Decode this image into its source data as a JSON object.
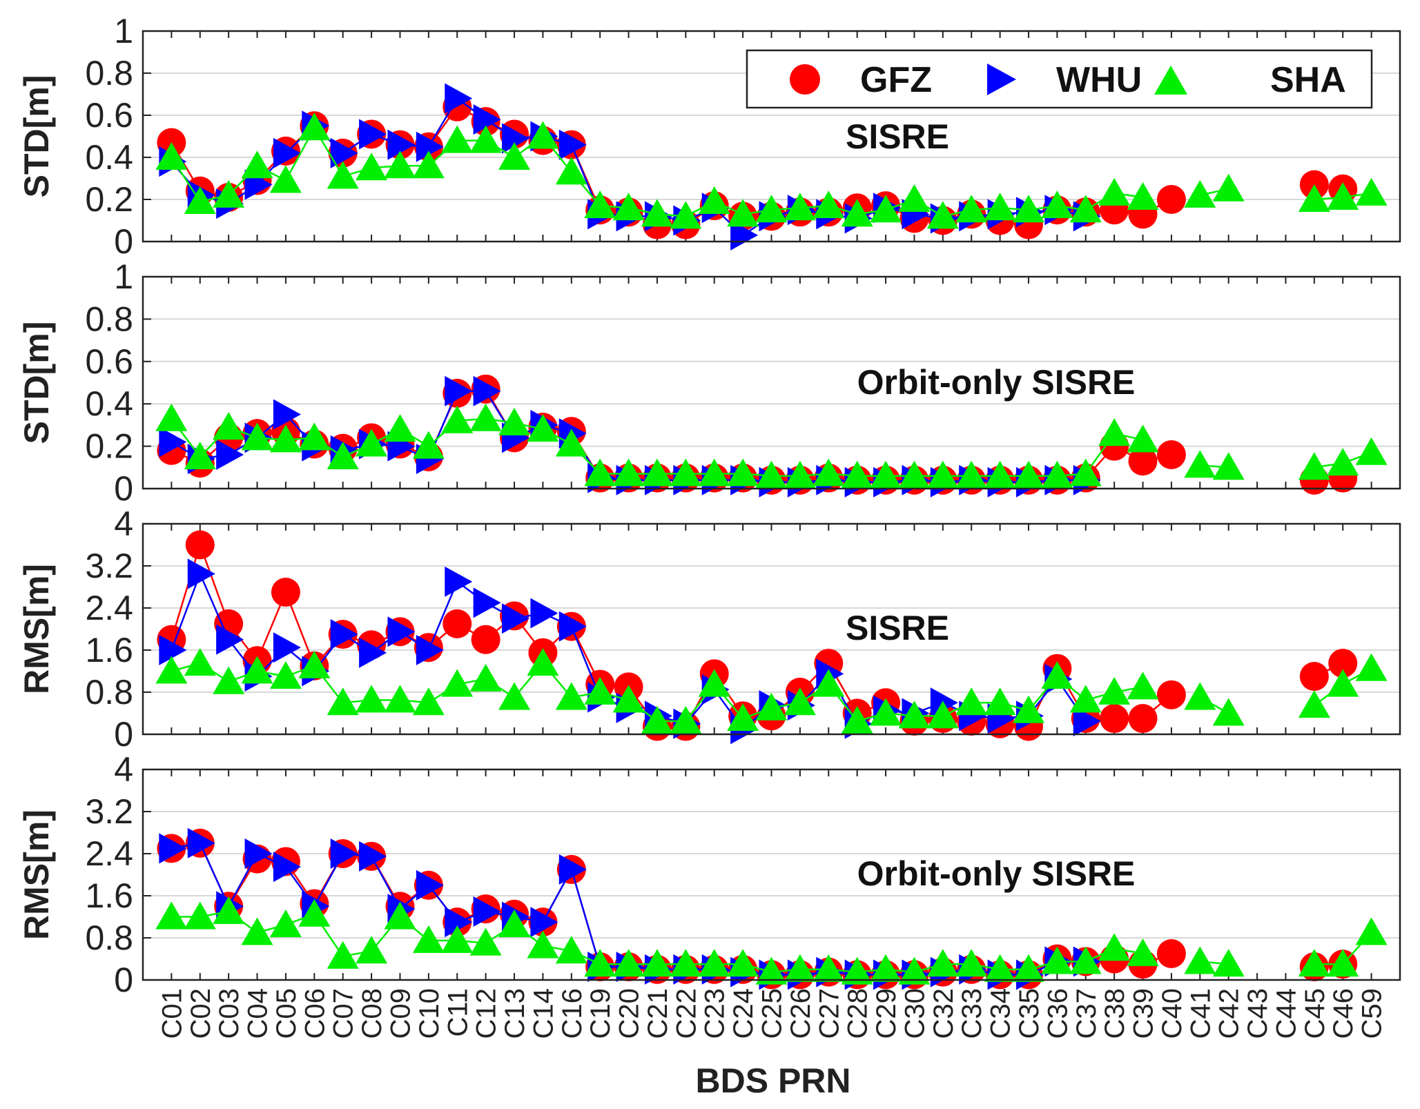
{
  "figure": {
    "xlabel": "BDS PRN",
    "prns": [
      "C01",
      "C02",
      "C03",
      "C04",
      "C05",
      "C06",
      "C07",
      "C08",
      "C09",
      "C10",
      "C11",
      "C12",
      "C13",
      "C14",
      "C16",
      "C19",
      "C20",
      "C21",
      "C22",
      "C23",
      "C24",
      "C25",
      "C26",
      "C27",
      "C28",
      "C29",
      "C30",
      "C32",
      "C33",
      "C34",
      "C35",
      "C36",
      "C37",
      "C38",
      "C39",
      "C40",
      "C41",
      "C42",
      "C43",
      "C44",
      "C45",
      "C46",
      "C59"
    ]
  },
  "legend": {
    "items": [
      {
        "name": "GFZ",
        "color": "#ff0000",
        "marker": "circle"
      },
      {
        "name": "WHU",
        "color": "#0000ff",
        "marker": "triangle-right"
      },
      {
        "name": "SHA",
        "color": "#00ee00",
        "marker": "triangle-up"
      }
    ]
  },
  "chart_data": [
    {
      "type": "line",
      "title": "SISRE",
      "ylabel": "STD[m]",
      "ylim": [
        0,
        1
      ],
      "yticks": [
        "0",
        "0.2",
        "0.4",
        "0.6",
        "0.8",
        "1"
      ],
      "ytick_values": [
        0,
        0.2,
        0.4,
        0.6,
        0.8,
        1
      ],
      "grid": true,
      "series": [
        {
          "name": "GFZ",
          "values": [
            0.47,
            0.24,
            0.21,
            0.29,
            0.43,
            0.55,
            0.42,
            0.51,
            0.46,
            0.45,
            0.64,
            0.57,
            0.51,
            0.48,
            0.46,
            0.15,
            0.14,
            0.08,
            0.08,
            0.17,
            0.12,
            0.12,
            0.14,
            0.14,
            0.16,
            0.17,
            0.11,
            0.1,
            0.13,
            0.1,
            0.08,
            0.15,
            0.14,
            0.15,
            0.13,
            0.2,
            null,
            null,
            null,
            null,
            0.27,
            0.25,
            null
          ]
        },
        {
          "name": "WHU",
          "values": [
            0.38,
            0.22,
            0.18,
            0.27,
            0.42,
            0.55,
            0.42,
            0.51,
            0.46,
            0.45,
            0.68,
            0.58,
            0.49,
            0.5,
            0.46,
            0.13,
            0.12,
            0.12,
            0.1,
            0.16,
            0.03,
            0.12,
            0.15,
            0.13,
            0.11,
            0.16,
            0.13,
            0.11,
            0.12,
            0.13,
            0.14,
            0.15,
            0.12,
            null,
            null,
            null,
            null,
            null,
            null,
            null,
            null,
            null,
            null
          ]
        },
        {
          "name": "SHA",
          "values": [
            0.4,
            0.19,
            0.22,
            0.36,
            0.29,
            0.54,
            0.31,
            0.35,
            0.36,
            0.36,
            0.48,
            0.48,
            0.4,
            0.5,
            0.33,
            0.17,
            0.16,
            0.13,
            0.12,
            0.19,
            0.13,
            0.15,
            0.16,
            0.17,
            0.13,
            0.15,
            0.2,
            0.12,
            0.15,
            0.16,
            0.15,
            0.17,
            0.15,
            0.23,
            0.21,
            null,
            0.22,
            0.25,
            null,
            null,
            0.2,
            0.21,
            0.23
          ]
        }
      ]
    },
    {
      "type": "line",
      "title": "Orbit-only SISRE",
      "ylabel": "STD[m]",
      "ylim": [
        0,
        1
      ],
      "yticks": [
        "0",
        "0.2",
        "0.4",
        "0.6",
        "0.8",
        "1"
      ],
      "ytick_values": [
        0,
        0.2,
        0.4,
        0.6,
        0.8,
        1
      ],
      "grid": true,
      "series": [
        {
          "name": "GFZ",
          "values": [
            0.18,
            0.12,
            0.24,
            0.26,
            0.27,
            0.21,
            0.19,
            0.24,
            0.21,
            0.15,
            0.45,
            0.47,
            0.24,
            0.29,
            0.27,
            0.05,
            0.05,
            0.05,
            0.05,
            0.05,
            0.05,
            0.04,
            0.04,
            0.05,
            0.04,
            0.04,
            0.04,
            0.04,
            0.04,
            0.04,
            0.04,
            0.04,
            0.05,
            0.2,
            0.13,
            0.16,
            null,
            null,
            null,
            null,
            0.04,
            0.05,
            null
          ]
        },
        {
          "name": "WHU",
          "values": [
            0.22,
            0.14,
            0.16,
            0.24,
            0.35,
            0.2,
            0.18,
            0.21,
            0.2,
            0.14,
            0.46,
            0.46,
            0.24,
            0.3,
            0.26,
            0.05,
            0.04,
            0.04,
            0.04,
            0.04,
            0.04,
            0.03,
            0.03,
            0.04,
            0.03,
            0.03,
            0.04,
            0.03,
            0.04,
            0.03,
            0.03,
            0.04,
            0.04,
            null,
            null,
            null,
            null,
            null,
            null,
            null,
            null,
            null,
            null
          ]
        },
        {
          "name": "SHA",
          "values": [
            0.33,
            0.15,
            0.29,
            0.24,
            0.23,
            0.24,
            0.15,
            0.21,
            0.28,
            0.2,
            0.32,
            0.33,
            0.31,
            0.28,
            0.21,
            0.07,
            0.07,
            0.07,
            0.07,
            0.07,
            0.07,
            0.06,
            0.06,
            0.07,
            0.06,
            0.06,
            0.06,
            0.06,
            0.06,
            0.06,
            0.06,
            0.06,
            0.07,
            0.26,
            0.23,
            null,
            0.11,
            0.1,
            null,
            null,
            0.1,
            0.12,
            0.17
          ]
        }
      ]
    },
    {
      "type": "line",
      "title": "SISRE",
      "ylabel": "RMS[m]",
      "ylim": [
        0,
        4
      ],
      "yticks": [
        "0",
        "0.8",
        "1.6",
        "2.4",
        "3.2",
        "4"
      ],
      "ytick_values": [
        0,
        0.8,
        1.6,
        2.4,
        3.2,
        4
      ],
      "grid": true,
      "series": [
        {
          "name": "GFZ",
          "values": [
            1.8,
            3.6,
            2.1,
            1.4,
            2.7,
            1.3,
            1.9,
            1.7,
            1.95,
            1.65,
            2.1,
            1.8,
            2.25,
            1.55,
            2.05,
            0.95,
            0.9,
            0.15,
            0.15,
            1.15,
            0.35,
            0.35,
            0.8,
            1.35,
            0.4,
            0.6,
            0.25,
            0.3,
            0.25,
            0.2,
            0.15,
            1.25,
            0.3,
            0.3,
            0.3,
            0.75,
            null,
            null,
            null,
            null,
            1.1,
            1.35,
            null
          ]
        },
        {
          "name": "WHU",
          "values": [
            1.6,
            3.05,
            1.8,
            1.1,
            1.65,
            1.2,
            1.9,
            1.55,
            1.95,
            1.6,
            2.9,
            2.5,
            2.2,
            2.3,
            2.05,
            0.7,
            0.5,
            0.35,
            0.2,
            0.85,
            0.1,
            0.55,
            0.55,
            1.15,
            0.2,
            0.45,
            0.4,
            0.6,
            0.35,
            0.3,
            0.35,
            1.05,
            0.25,
            null,
            null,
            null,
            null,
            null,
            null,
            null,
            null,
            null,
            null
          ]
        },
        {
          "name": "SHA",
          "values": [
            1.2,
            1.35,
            1.0,
            1.2,
            1.1,
            1.3,
            0.6,
            0.65,
            0.65,
            0.6,
            0.95,
            1.05,
            0.7,
            1.35,
            0.7,
            0.8,
            0.65,
            0.25,
            0.25,
            0.95,
            0.3,
            0.5,
            0.6,
            0.95,
            0.25,
            0.4,
            0.35,
            0.35,
            0.6,
            0.6,
            0.45,
            1.1,
            0.65,
            0.8,
            0.9,
            null,
            0.7,
            0.4,
            null,
            null,
            0.55,
            0.95,
            1.25
          ]
        }
      ]
    },
    {
      "type": "line",
      "title": "Orbit-only SISRE",
      "ylabel": "RMS[m]",
      "ylim": [
        0,
        4
      ],
      "yticks": [
        "0",
        "0.8",
        "1.6",
        "2.4",
        "3.2",
        "4"
      ],
      "ytick_values": [
        0,
        0.8,
        1.6,
        2.4,
        3.2,
        4
      ],
      "grid": true,
      "series": [
        {
          "name": "GFZ",
          "values": [
            2.5,
            2.6,
            1.4,
            2.3,
            2.25,
            1.45,
            2.4,
            2.35,
            1.4,
            1.8,
            1.1,
            1.35,
            1.25,
            1.1,
            2.1,
            0.25,
            0.25,
            0.2,
            0.2,
            0.2,
            0.2,
            0.1,
            0.1,
            0.15,
            0.1,
            0.1,
            0.1,
            0.15,
            0.2,
            0.1,
            0.1,
            0.4,
            0.35,
            0.4,
            0.3,
            0.5,
            null,
            null,
            null,
            null,
            0.25,
            0.3,
            null
          ]
        },
        {
          "name": "WHU",
          "values": [
            2.5,
            2.6,
            1.4,
            2.4,
            2.15,
            1.4,
            2.4,
            2.35,
            1.35,
            1.8,
            1.1,
            1.3,
            1.2,
            1.1,
            2.1,
            0.25,
            0.25,
            0.2,
            0.2,
            0.2,
            0.15,
            0.1,
            0.1,
            0.15,
            0.1,
            0.1,
            0.1,
            0.15,
            0.2,
            0.1,
            0.1,
            0.35,
            0.35,
            null,
            null,
            null,
            null,
            null,
            null,
            null,
            null,
            null,
            null
          ]
        },
        {
          "name": "SHA",
          "values": [
            1.2,
            1.2,
            1.3,
            0.9,
            1.05,
            1.25,
            0.45,
            0.55,
            1.2,
            0.75,
            0.75,
            0.7,
            1.05,
            0.65,
            0.55,
            0.3,
            0.3,
            0.3,
            0.3,
            0.3,
            0.3,
            0.15,
            0.2,
            0.2,
            0.15,
            0.2,
            0.15,
            0.3,
            0.3,
            0.2,
            0.2,
            0.35,
            0.35,
            0.6,
            0.5,
            null,
            0.35,
            0.3,
            null,
            null,
            0.3,
            0.3,
            0.9
          ]
        }
      ]
    }
  ]
}
